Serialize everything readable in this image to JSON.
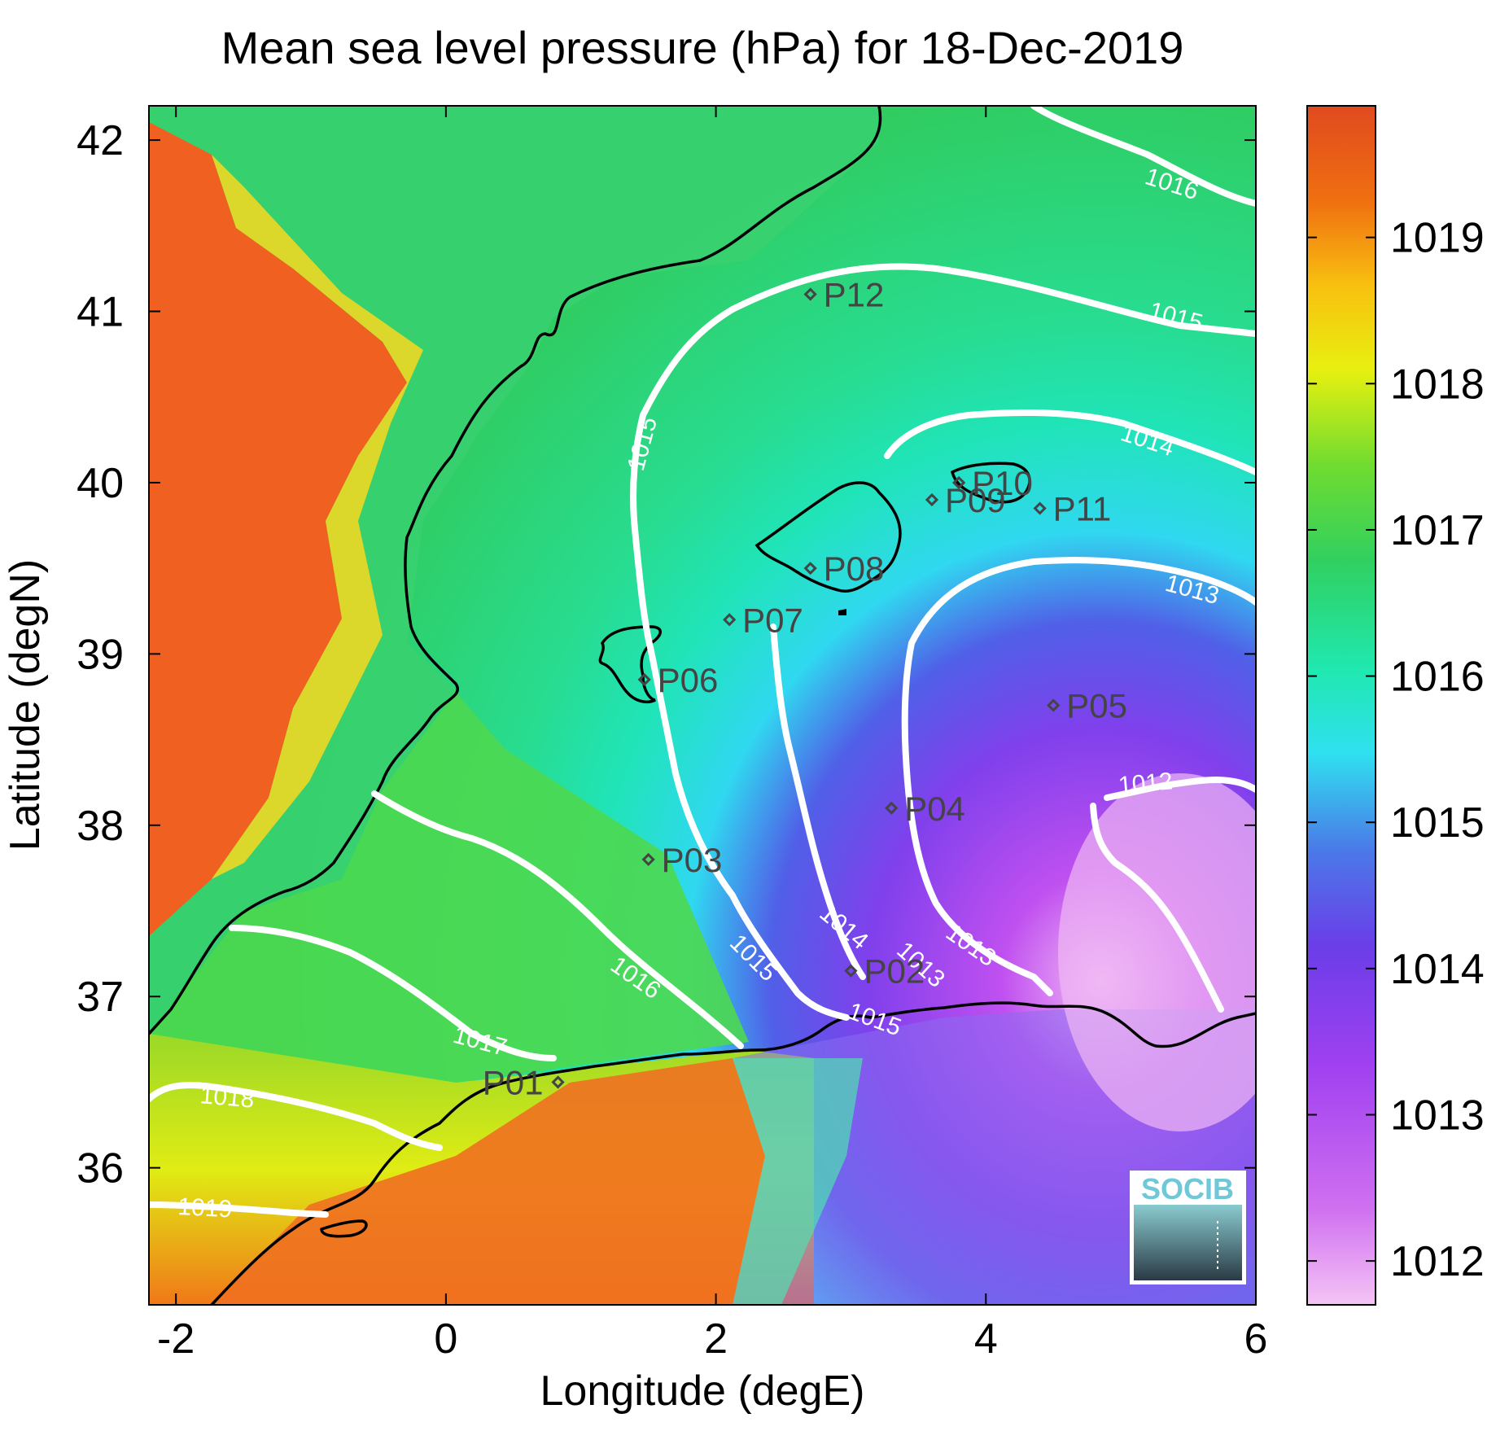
{
  "title": "Mean sea level pressure (hPa) for 18-Dec-2019",
  "xlabel": "Longitude (degE)",
  "ylabel": "Latitude (degN)",
  "map": {
    "xlim": [
      -2.2,
      6
    ],
    "ylim": [
      35.2,
      42.2
    ],
    "xticks": [
      -2,
      0,
      2,
      4,
      6
    ],
    "yticks": [
      36,
      37,
      38,
      39,
      40,
      41,
      42
    ]
  },
  "colorbar": {
    "label_ticks": [
      1012,
      1013,
      1014,
      1015,
      1016,
      1017,
      1018,
      1019
    ],
    "range": [
      1011.7,
      1019.9
    ],
    "colormap": [
      "#f5c4f5",
      "#b040f0",
      "#6a3ee8",
      "#4a7ae8",
      "#30e8e8",
      "#20e8b0",
      "#30d060",
      "#70dc30",
      "#d8ec10",
      "#f8e010",
      "#f8a010",
      "#f06010",
      "#e04a20"
    ]
  },
  "contour_labels": [
    "1012",
    "1013",
    "1013",
    "1013",
    "1014",
    "1014",
    "1015",
    "1015",
    "1015",
    "1015",
    "1016",
    "1016",
    "1017",
    "1018",
    "1019"
  ],
  "stations": [
    {
      "name": "P01",
      "lon": 0.83,
      "lat": 36.5
    },
    {
      "name": "P02",
      "lon": 3.0,
      "lat": 37.15
    },
    {
      "name": "P03",
      "lon": 1.5,
      "lat": 37.8
    },
    {
      "name": "P04",
      "lon": 3.3,
      "lat": 38.1
    },
    {
      "name": "P05",
      "lon": 4.5,
      "lat": 38.7
    },
    {
      "name": "P06",
      "lon": 1.47,
      "lat": 38.85
    },
    {
      "name": "P07",
      "lon": 2.1,
      "lat": 39.2
    },
    {
      "name": "P08",
      "lon": 2.7,
      "lat": 39.5
    },
    {
      "name": "P09",
      "lon": 3.6,
      "lat": 39.9
    },
    {
      "name": "P10",
      "lon": 3.8,
      "lat": 40.0
    },
    {
      "name": "P11",
      "lon": 4.4,
      "lat": 39.85
    },
    {
      "name": "P12",
      "lon": 2.7,
      "lat": 41.1
    }
  ],
  "logo": {
    "text": "SOCIB"
  }
}
